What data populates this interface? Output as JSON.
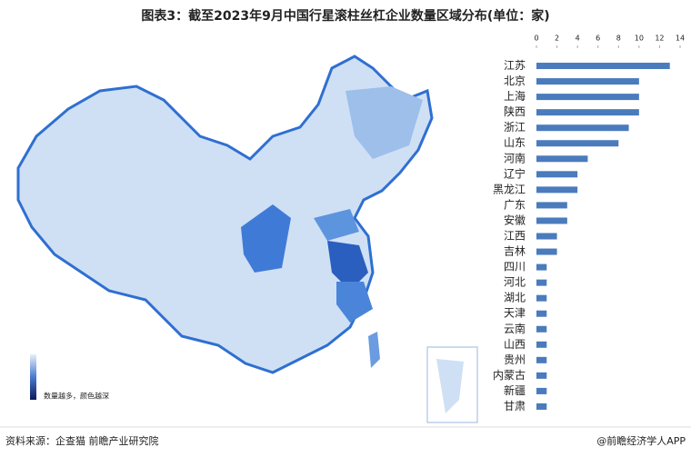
{
  "chart_data": {
    "type": "bar",
    "orientation": "horizontal",
    "title": "图表3：截至2023年9月中国行星滚柱丝杠企业数量区域分布(单位：家)",
    "categories": [
      "江苏",
      "北京",
      "上海",
      "陕西",
      "浙江",
      "山东",
      "河南",
      "辽宁",
      "黑龙江",
      "广东",
      "安徽",
      "江西",
      "吉林",
      "四川",
      "河北",
      "湖北",
      "天津",
      "云南",
      "山西",
      "贵州",
      "内蒙古",
      "新疆",
      "甘肃"
    ],
    "values": [
      13,
      10,
      10,
      10,
      9,
      8,
      5,
      4,
      4,
      3,
      3,
      2,
      2,
      1,
      1,
      1,
      1,
      1,
      1,
      1,
      1,
      1,
      1
    ],
    "color": "#4a7bbd",
    "xlim": [
      0,
      14
    ],
    "xticks": [
      0,
      2,
      4,
      6,
      8,
      10,
      12,
      14
    ]
  },
  "map_legend": "数量越多，颜色越深",
  "source": "资料来源：企查猫 前瞻产业研究院",
  "brand": "@前瞻经济学人APP"
}
